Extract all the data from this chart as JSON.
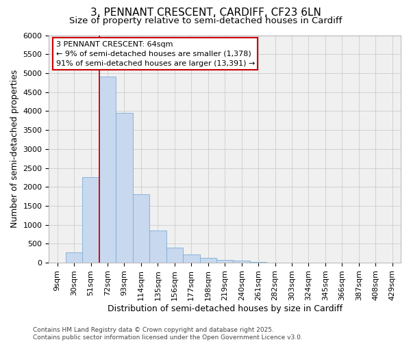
{
  "title_line1": "3, PENNANT CRESCENT, CARDIFF, CF23 6LN",
  "title_line2": "Size of property relative to semi-detached houses in Cardiff",
  "xlabel": "Distribution of semi-detached houses by size in Cardiff",
  "ylabel": "Number of semi-detached properties",
  "categories": [
    "9sqm",
    "30sqm",
    "51sqm",
    "72sqm",
    "93sqm",
    "114sqm",
    "135sqm",
    "156sqm",
    "177sqm",
    "198sqm",
    "219sqm",
    "240sqm",
    "261sqm",
    "282sqm",
    "303sqm",
    "324sqm",
    "345sqm",
    "366sqm",
    "387sqm",
    "408sqm",
    "429sqm"
  ],
  "values": [
    5,
    270,
    2250,
    4900,
    3950,
    1800,
    850,
    400,
    220,
    130,
    80,
    50,
    15,
    5,
    0,
    0,
    0,
    0,
    0,
    0,
    0
  ],
  "bar_color": "#c8d8ee",
  "bar_edge_color": "#7aaed4",
  "vline_color": "#cc0000",
  "vline_position": 2.5,
  "annotation_text_line1": "3 PENNANT CRESCENT: 64sqm",
  "annotation_text_line2": "← 9% of semi-detached houses are smaller (1,378)",
  "annotation_text_line3": "91% of semi-detached houses are larger (13,391) →",
  "annotation_box_edgecolor": "#cc0000",
  "ylim": [
    0,
    6000
  ],
  "yticks": [
    0,
    500,
    1000,
    1500,
    2000,
    2500,
    3000,
    3500,
    4000,
    4500,
    5000,
    5500,
    6000
  ],
  "grid_color": "#cccccc",
  "plot_bg_color": "#f0f0f0",
  "fig_bg_color": "#ffffff",
  "footer_line1": "Contains HM Land Registry data © Crown copyright and database right 2025.",
  "footer_line2": "Contains public sector information licensed under the Open Government Licence v3.0.",
  "title_fontsize": 11,
  "subtitle_fontsize": 9.5,
  "axis_label_fontsize": 9,
  "tick_fontsize": 8,
  "annotation_fontsize": 8,
  "footer_fontsize": 6.5
}
